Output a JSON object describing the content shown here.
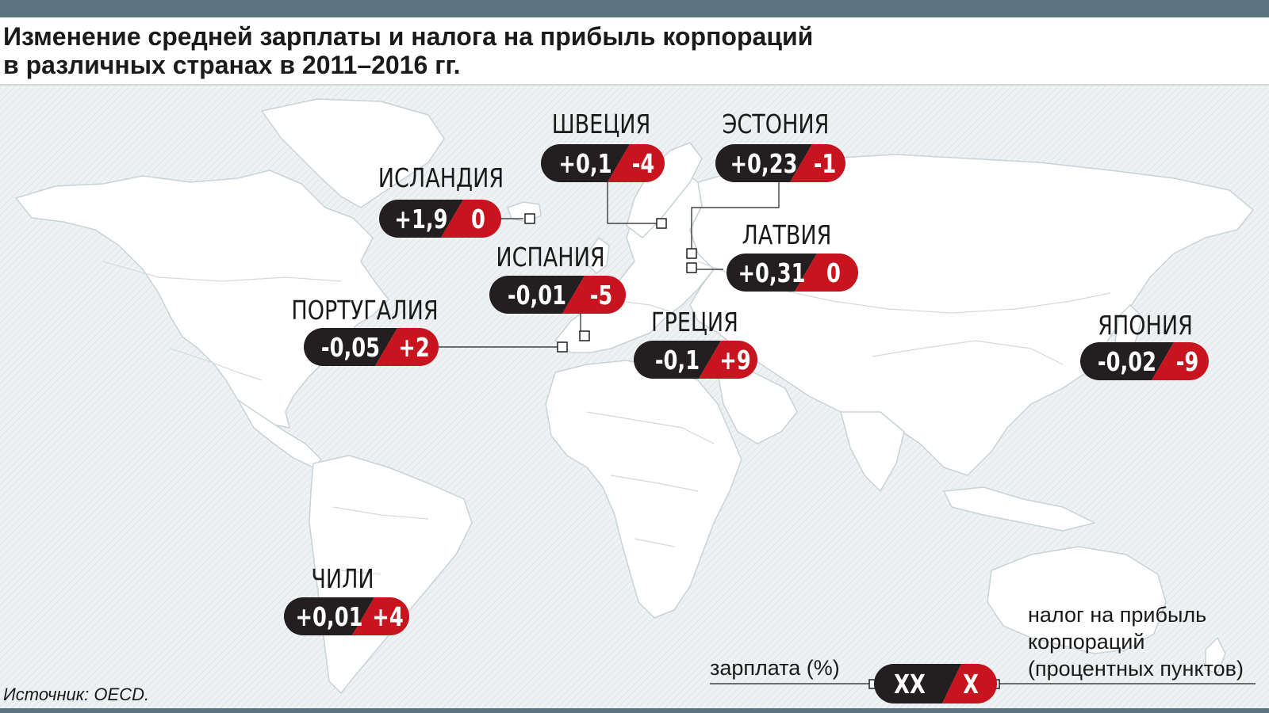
{
  "title": {
    "line1": "Изменение средней зарплаты и налога на прибыль корпораций",
    "line2": "в различных странах в 2011–2016 гг."
  },
  "colors": {
    "pill_dark": "#231f20",
    "pill_red": "#c8141e",
    "map_land": "#ffffff",
    "map_border": "#c9d2d6",
    "map_bg": "#edf1f2"
  },
  "countries": [
    {
      "id": "iceland",
      "name": "ИСЛАНДИЯ",
      "salary": "+1,9",
      "tax": "0"
    },
    {
      "id": "sweden",
      "name": "ШВЕЦИЯ",
      "salary": "+0,1",
      "tax": "-4"
    },
    {
      "id": "estonia",
      "name": "ЭСТОНИЯ",
      "salary": "+0,23",
      "tax": "-1"
    },
    {
      "id": "latvia",
      "name": "ЛАТВИЯ",
      "salary": "+0,31",
      "tax": "0"
    },
    {
      "id": "spain",
      "name": "ИСПАНИЯ",
      "salary": "-0,01",
      "tax": "-5"
    },
    {
      "id": "portugal",
      "name": "ПОРТУГАЛИЯ",
      "salary": "-0,05",
      "tax": "+2"
    },
    {
      "id": "greece",
      "name": "ГРЕЦИЯ",
      "salary": "-0,1",
      "tax": "+9"
    },
    {
      "id": "japan",
      "name": "ЯПОНИЯ",
      "salary": "-0,02",
      "tax": "-9"
    },
    {
      "id": "chile",
      "name": "ЧИЛИ",
      "salary": "+0,01",
      "tax": "+4"
    }
  ],
  "legend": {
    "salary_label": "зарплата (%)",
    "tax_label_line1": "налог на прибыль",
    "tax_label_line2": "корпораций",
    "tax_label_line3": "(процентных пунктов)",
    "salary_placeholder": "XX",
    "tax_placeholder": "X"
  },
  "source": "Источник: OECD."
}
